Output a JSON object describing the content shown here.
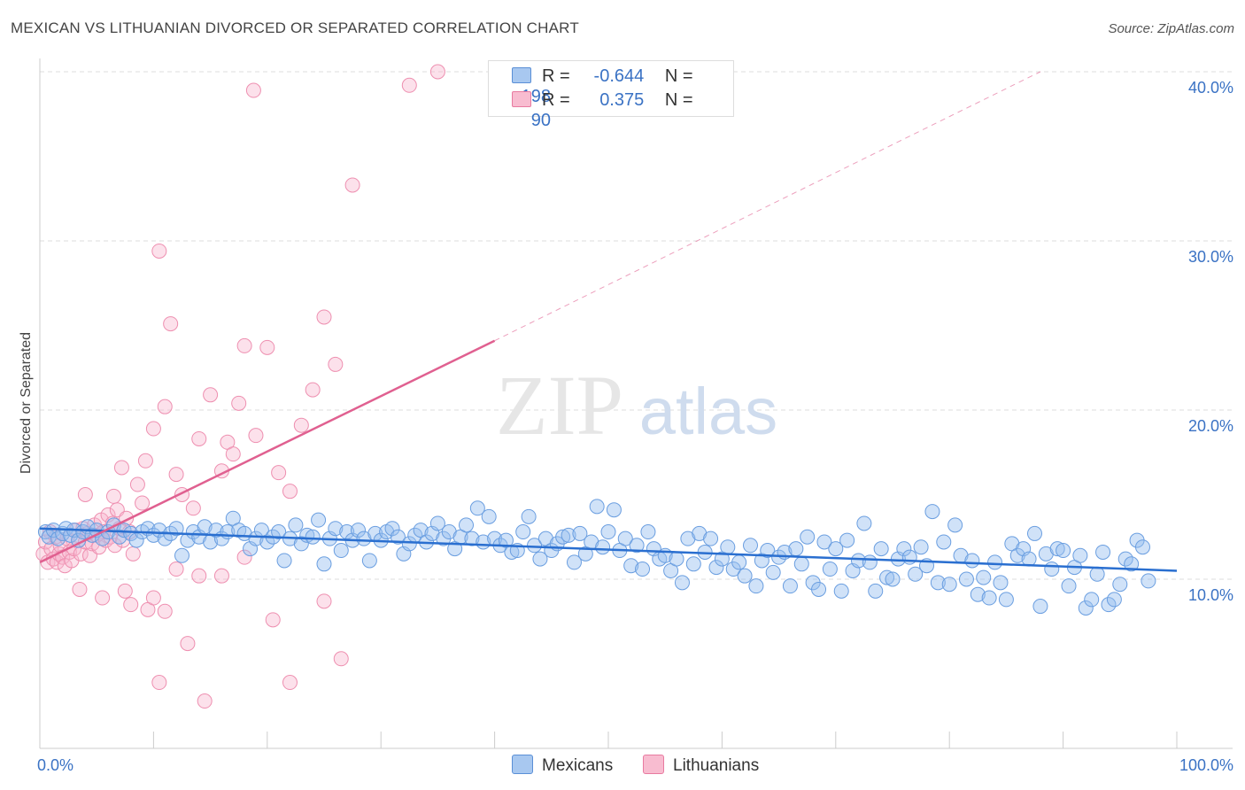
{
  "title": "MEXICAN VS LITHUANIAN DIVORCED OR SEPARATED CORRELATION CHART",
  "source": "Source: ZipAtlas.com",
  "watermark": {
    "zip": "ZIP",
    "atlas": "atlas"
  },
  "legend": {
    "rows": [
      {
        "r_label": "R =",
        "r_value": "-0.644",
        "n_label": "N =",
        "n_value": "198",
        "color": "#a8c8f0",
        "border": "#5a8fd6"
      },
      {
        "r_label": "R =",
        "r_value": "0.375",
        "n_label": "N =",
        "n_value": "90",
        "color": "#f8bcd0",
        "border": "#e87aa0"
      }
    ]
  },
  "bottom_legend": {
    "mexicans": "Mexicans",
    "lithuanians": "Lithuanians"
  },
  "colors": {
    "mexicans_fill": "rgba(150,190,240,0.45)",
    "mexicans_stroke": "#6a9ee0",
    "mexicans_line": "#2a6fd0",
    "lithuanians_fill": "rgba(248,180,205,0.40)",
    "lithuanians_stroke": "#ee8fb0",
    "lithuanians_line": "#e06090",
    "axis_text": "#3a72c4"
  },
  "chart_data": {
    "type": "scatter",
    "ylabel": "Divorced or Separated",
    "xlim": [
      0,
      100
    ],
    "ylim": [
      0,
      40
    ],
    "x_tick_labels": [
      "0.0%",
      "100.0%"
    ],
    "y_ticks": [
      10,
      20,
      30,
      40
    ],
    "y_tick_labels": [
      "10.0%",
      "20.0%",
      "30.0%",
      "40.0%"
    ],
    "grid": true,
    "series": [
      {
        "name": "Mexicans",
        "points": [
          [
            0.5,
            12.8
          ],
          [
            0.8,
            12.5
          ],
          [
            1.2,
            12.9
          ],
          [
            1.6,
            12.4
          ],
          [
            2.0,
            12.7
          ],
          [
            2.3,
            13.0
          ],
          [
            2.7,
            12.6
          ],
          [
            3.0,
            12.9
          ],
          [
            3.4,
            12.3
          ],
          [
            3.8,
            12.8
          ],
          [
            4.2,
            13.1
          ],
          [
            4.6,
            12.6
          ],
          [
            5.0,
            12.9
          ],
          [
            5.5,
            12.4
          ],
          [
            6.0,
            12.8
          ],
          [
            6.5,
            13.2
          ],
          [
            7.0,
            12.5
          ],
          [
            7.4,
            12.9
          ],
          [
            8.0,
            12.7
          ],
          [
            8.5,
            12.3
          ],
          [
            9.0,
            12.8
          ],
          [
            9.5,
            13.0
          ],
          [
            10.0,
            12.6
          ],
          [
            10.5,
            12.9
          ],
          [
            11.0,
            12.4
          ],
          [
            11.5,
            12.7
          ],
          [
            12.0,
            13.0
          ],
          [
            12.5,
            11.4
          ],
          [
            13.0,
            12.3
          ],
          [
            13.5,
            12.8
          ],
          [
            14.0,
            12.5
          ],
          [
            14.5,
            13.1
          ],
          [
            15.0,
            12.2
          ],
          [
            15.5,
            12.9
          ],
          [
            16.0,
            12.4
          ],
          [
            16.5,
            12.8
          ],
          [
            17.0,
            13.6
          ],
          [
            17.5,
            12.9
          ],
          [
            18.0,
            12.7
          ],
          [
            18.5,
            11.8
          ],
          [
            19.0,
            12.4
          ],
          [
            19.5,
            12.9
          ],
          [
            20.0,
            12.2
          ],
          [
            20.5,
            12.5
          ],
          [
            21.0,
            12.8
          ],
          [
            21.5,
            11.1
          ],
          [
            22.0,
            12.4
          ],
          [
            22.5,
            13.2
          ],
          [
            23.0,
            12.1
          ],
          [
            23.5,
            12.6
          ],
          [
            24.0,
            12.5
          ],
          [
            24.5,
            13.5
          ],
          [
            25.0,
            10.9
          ],
          [
            25.5,
            12.4
          ],
          [
            26.0,
            13.0
          ],
          [
            26.5,
            11.7
          ],
          [
            27.0,
            12.8
          ],
          [
            27.5,
            12.3
          ],
          [
            28.0,
            12.9
          ],
          [
            28.5,
            12.4
          ],
          [
            29.0,
            11.1
          ],
          [
            29.5,
            12.7
          ],
          [
            30.0,
            12.3
          ],
          [
            30.5,
            12.8
          ],
          [
            31.0,
            13.0
          ],
          [
            31.5,
            12.5
          ],
          [
            32.0,
            11.5
          ],
          [
            32.5,
            12.1
          ],
          [
            33.0,
            12.6
          ],
          [
            33.5,
            12.9
          ],
          [
            34.0,
            12.2
          ],
          [
            34.5,
            12.7
          ],
          [
            35.0,
            13.3
          ],
          [
            35.5,
            12.4
          ],
          [
            36.0,
            12.8
          ],
          [
            36.5,
            11.8
          ],
          [
            37.0,
            12.5
          ],
          [
            37.5,
            13.2
          ],
          [
            38.0,
            12.4
          ],
          [
            38.5,
            14.2
          ],
          [
            39.0,
            12.2
          ],
          [
            39.5,
            13.7
          ],
          [
            40.0,
            12.4
          ],
          [
            40.5,
            12.0
          ],
          [
            41.0,
            12.3
          ],
          [
            41.5,
            11.6
          ],
          [
            42.0,
            11.7
          ],
          [
            42.5,
            12.8
          ],
          [
            43.0,
            13.7
          ],
          [
            43.5,
            12.0
          ],
          [
            44.0,
            11.2
          ],
          [
            44.5,
            12.4
          ],
          [
            45.0,
            11.7
          ],
          [
            45.5,
            12.1
          ],
          [
            46.0,
            12.5
          ],
          [
            46.5,
            12.6
          ],
          [
            47.0,
            11.0
          ],
          [
            47.5,
            12.7
          ],
          [
            48.0,
            11.5
          ],
          [
            48.5,
            12.2
          ],
          [
            49.0,
            14.3
          ],
          [
            49.5,
            11.9
          ],
          [
            50.0,
            12.8
          ],
          [
            50.5,
            14.1
          ],
          [
            51.0,
            11.7
          ],
          [
            51.5,
            12.4
          ],
          [
            52.0,
            10.8
          ],
          [
            52.5,
            12.0
          ],
          [
            53.0,
            10.6
          ],
          [
            53.5,
            12.8
          ],
          [
            54.0,
            11.8
          ],
          [
            54.5,
            11.2
          ],
          [
            55.0,
            11.4
          ],
          [
            55.5,
            10.5
          ],
          [
            56.0,
            11.2
          ],
          [
            56.5,
            9.8
          ],
          [
            57.0,
            12.4
          ],
          [
            57.5,
            10.9
          ],
          [
            58.0,
            12.7
          ],
          [
            58.5,
            11.6
          ],
          [
            59.0,
            12.4
          ],
          [
            59.5,
            10.7
          ],
          [
            60.0,
            11.2
          ],
          [
            60.5,
            11.9
          ],
          [
            61.0,
            10.6
          ],
          [
            61.5,
            11.0
          ],
          [
            62.0,
            10.2
          ],
          [
            62.5,
            12.0
          ],
          [
            63.0,
            9.6
          ],
          [
            63.5,
            11.1
          ],
          [
            64.0,
            11.7
          ],
          [
            64.5,
            10.4
          ],
          [
            65.0,
            11.3
          ],
          [
            65.5,
            11.6
          ],
          [
            66.0,
            9.6
          ],
          [
            66.5,
            11.8
          ],
          [
            67.0,
            10.9
          ],
          [
            67.5,
            12.5
          ],
          [
            68.0,
            9.8
          ],
          [
            68.5,
            9.4
          ],
          [
            69.0,
            12.2
          ],
          [
            69.5,
            10.6
          ],
          [
            70.0,
            11.8
          ],
          [
            70.5,
            9.3
          ],
          [
            71.0,
            12.3
          ],
          [
            71.5,
            10.5
          ],
          [
            72.0,
            11.1
          ],
          [
            72.5,
            13.3
          ],
          [
            73.0,
            11.0
          ],
          [
            73.5,
            9.3
          ],
          [
            74.0,
            11.8
          ],
          [
            74.5,
            10.1
          ],
          [
            75.0,
            10.0
          ],
          [
            75.5,
            11.2
          ],
          [
            76.0,
            11.8
          ],
          [
            76.5,
            11.3
          ],
          [
            77.0,
            10.3
          ],
          [
            77.5,
            11.9
          ],
          [
            78.0,
            10.8
          ],
          [
            78.5,
            14.0
          ],
          [
            79.0,
            9.8
          ],
          [
            79.5,
            12.2
          ],
          [
            80.0,
            9.7
          ],
          [
            80.5,
            13.2
          ],
          [
            81.0,
            11.4
          ],
          [
            81.5,
            10.0
          ],
          [
            82.0,
            11.1
          ],
          [
            82.5,
            9.1
          ],
          [
            83.0,
            10.1
          ],
          [
            83.5,
            8.9
          ],
          [
            84.0,
            11.0
          ],
          [
            84.5,
            9.8
          ],
          [
            85.0,
            8.8
          ],
          [
            85.5,
            12.1
          ],
          [
            86.0,
            11.4
          ],
          [
            86.5,
            11.8
          ],
          [
            87.0,
            11.2
          ],
          [
            87.5,
            12.7
          ],
          [
            88.0,
            8.4
          ],
          [
            88.5,
            11.5
          ],
          [
            89.0,
            10.6
          ],
          [
            89.5,
            11.8
          ],
          [
            90.0,
            11.7
          ],
          [
            90.5,
            9.6
          ],
          [
            91.0,
            10.7
          ],
          [
            91.5,
            11.4
          ],
          [
            92.0,
            8.3
          ],
          [
            92.5,
            8.8
          ],
          [
            93.0,
            10.3
          ],
          [
            93.5,
            11.6
          ],
          [
            94.0,
            8.5
          ],
          [
            94.5,
            8.8
          ],
          [
            95.0,
            9.7
          ],
          [
            95.5,
            11.2
          ],
          [
            96.0,
            10.9
          ],
          [
            96.5,
            12.3
          ],
          [
            97.0,
            11.9
          ],
          [
            97.5,
            9.9
          ]
        ],
        "trend": {
          "x": [
            0,
            100
          ],
          "y": [
            13.0,
            10.5
          ]
        }
      },
      {
        "name": "Lithuanians",
        "points": [
          [
            0.3,
            11.5
          ],
          [
            0.5,
            12.2
          ],
          [
            0.7,
            11.0
          ],
          [
            0.9,
            12.8
          ],
          [
            1.0,
            11.8
          ],
          [
            1.2,
            11.2
          ],
          [
            1.4,
            12.5
          ],
          [
            1.5,
            11.0
          ],
          [
            1.7,
            11.5
          ],
          [
            1.8,
            12.0
          ],
          [
            2.0,
            11.3
          ],
          [
            2.2,
            10.8
          ],
          [
            2.4,
            12.4
          ],
          [
            2.6,
            11.6
          ],
          [
            2.8,
            11.1
          ],
          [
            3.0,
            11.8
          ],
          [
            3.2,
            12.9
          ],
          [
            3.4,
            12.3
          ],
          [
            3.6,
            11.5
          ],
          [
            3.8,
            13.0
          ],
          [
            4.0,
            12.2
          ],
          [
            4.2,
            12.7
          ],
          [
            4.4,
            11.4
          ],
          [
            4.6,
            12.1
          ],
          [
            4.8,
            13.2
          ],
          [
            5.0,
            12.6
          ],
          [
            5.2,
            11.9
          ],
          [
            5.4,
            13.5
          ],
          [
            5.6,
            12.8
          ],
          [
            5.8,
            12.3
          ],
          [
            6.0,
            13.8
          ],
          [
            6.2,
            12.5
          ],
          [
            6.4,
            13.3
          ],
          [
            6.6,
            12.0
          ],
          [
            6.8,
            14.1
          ],
          [
            7.0,
            13.0
          ],
          [
            7.3,
            12.3
          ],
          [
            7.6,
            13.6
          ],
          [
            7.9,
            12.8
          ],
          [
            8.2,
            11.5
          ],
          [
            4.0,
            15.0
          ],
          [
            6.5,
            14.9
          ],
          [
            7.2,
            16.6
          ],
          [
            8.6,
            15.6
          ],
          [
            9.0,
            14.5
          ],
          [
            9.3,
            17.0
          ],
          [
            10.0,
            18.9
          ],
          [
            11.0,
            20.2
          ],
          [
            12.0,
            16.2
          ],
          [
            11.5,
            25.1
          ],
          [
            12.5,
            15.0
          ],
          [
            13.5,
            14.2
          ],
          [
            14.0,
            18.3
          ],
          [
            15.0,
            20.9
          ],
          [
            16.0,
            16.4
          ],
          [
            16.5,
            18.1
          ],
          [
            17.0,
            17.4
          ],
          [
            17.5,
            20.4
          ],
          [
            18.0,
            23.8
          ],
          [
            19.0,
            18.5
          ],
          [
            20.0,
            23.7
          ],
          [
            21.0,
            16.3
          ],
          [
            22.0,
            15.2
          ],
          [
            23.0,
            19.1
          ],
          [
            24.0,
            21.2
          ],
          [
            25.0,
            25.5
          ],
          [
            26.0,
            22.7
          ],
          [
            27.5,
            33.3
          ],
          [
            32.5,
            39.2
          ],
          [
            35.0,
            40.0
          ],
          [
            18.8,
            38.9
          ],
          [
            10.5,
            29.4
          ],
          [
            3.5,
            9.4
          ],
          [
            5.5,
            8.9
          ],
          [
            7.5,
            9.3
          ],
          [
            8.0,
            8.5
          ],
          [
            9.5,
            8.2
          ],
          [
            10.0,
            8.9
          ],
          [
            11.0,
            8.1
          ],
          [
            12.0,
            10.6
          ],
          [
            14.0,
            10.2
          ],
          [
            16.0,
            10.2
          ],
          [
            18.0,
            11.3
          ],
          [
            10.5,
            3.9
          ],
          [
            13.0,
            6.2
          ],
          [
            14.5,
            2.8
          ],
          [
            20.5,
            7.6
          ],
          [
            22.0,
            3.9
          ],
          [
            25.0,
            8.7
          ],
          [
            26.5,
            5.3
          ]
        ],
        "trend": {
          "x": [
            0,
            40
          ],
          "y": [
            11.0,
            24.1
          ]
        },
        "trend_extended": {
          "x": [
            40,
            88
          ],
          "y": [
            24.1,
            40.0
          ]
        }
      }
    ]
  }
}
